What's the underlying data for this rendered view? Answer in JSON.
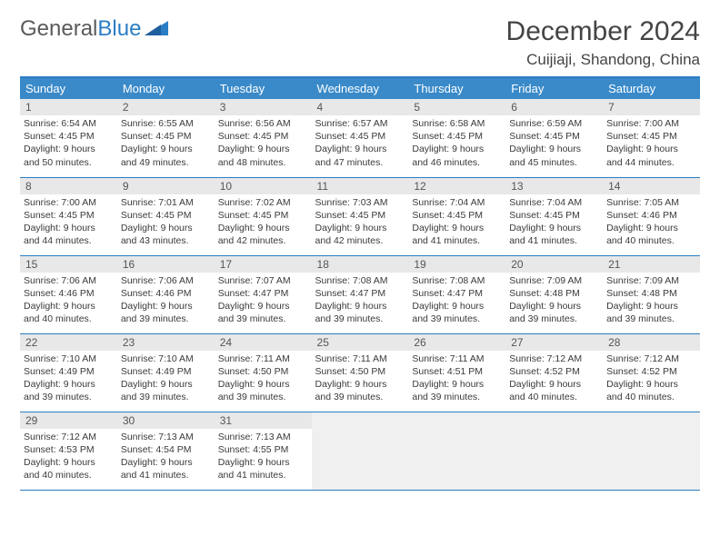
{
  "logo": {
    "word1": "General",
    "word2": "Blue"
  },
  "title": "December 2024",
  "location": "Cuijiaji, Shandong, China",
  "colors": {
    "header_bg": "#3a8ac9",
    "border": "#2b7dc4",
    "daynum_bg": "#e8e8e8",
    "text": "#3a3a3a",
    "page_bg": "#ffffff"
  },
  "weekdays": [
    "Sunday",
    "Monday",
    "Tuesday",
    "Wednesday",
    "Thursday",
    "Friday",
    "Saturday"
  ],
  "weeks": [
    [
      {
        "n": "1",
        "sr": "6:54 AM",
        "ss": "4:45 PM",
        "dl": "9 hours and 50 minutes."
      },
      {
        "n": "2",
        "sr": "6:55 AM",
        "ss": "4:45 PM",
        "dl": "9 hours and 49 minutes."
      },
      {
        "n": "3",
        "sr": "6:56 AM",
        "ss": "4:45 PM",
        "dl": "9 hours and 48 minutes."
      },
      {
        "n": "4",
        "sr": "6:57 AM",
        "ss": "4:45 PM",
        "dl": "9 hours and 47 minutes."
      },
      {
        "n": "5",
        "sr": "6:58 AM",
        "ss": "4:45 PM",
        "dl": "9 hours and 46 minutes."
      },
      {
        "n": "6",
        "sr": "6:59 AM",
        "ss": "4:45 PM",
        "dl": "9 hours and 45 minutes."
      },
      {
        "n": "7",
        "sr": "7:00 AM",
        "ss": "4:45 PM",
        "dl": "9 hours and 44 minutes."
      }
    ],
    [
      {
        "n": "8",
        "sr": "7:00 AM",
        "ss": "4:45 PM",
        "dl": "9 hours and 44 minutes."
      },
      {
        "n": "9",
        "sr": "7:01 AM",
        "ss": "4:45 PM",
        "dl": "9 hours and 43 minutes."
      },
      {
        "n": "10",
        "sr": "7:02 AM",
        "ss": "4:45 PM",
        "dl": "9 hours and 42 minutes."
      },
      {
        "n": "11",
        "sr": "7:03 AM",
        "ss": "4:45 PM",
        "dl": "9 hours and 42 minutes."
      },
      {
        "n": "12",
        "sr": "7:04 AM",
        "ss": "4:45 PM",
        "dl": "9 hours and 41 minutes."
      },
      {
        "n": "13",
        "sr": "7:04 AM",
        "ss": "4:45 PM",
        "dl": "9 hours and 41 minutes."
      },
      {
        "n": "14",
        "sr": "7:05 AM",
        "ss": "4:46 PM",
        "dl": "9 hours and 40 minutes."
      }
    ],
    [
      {
        "n": "15",
        "sr": "7:06 AM",
        "ss": "4:46 PM",
        "dl": "9 hours and 40 minutes."
      },
      {
        "n": "16",
        "sr": "7:06 AM",
        "ss": "4:46 PM",
        "dl": "9 hours and 39 minutes."
      },
      {
        "n": "17",
        "sr": "7:07 AM",
        "ss": "4:47 PM",
        "dl": "9 hours and 39 minutes."
      },
      {
        "n": "18",
        "sr": "7:08 AM",
        "ss": "4:47 PM",
        "dl": "9 hours and 39 minutes."
      },
      {
        "n": "19",
        "sr": "7:08 AM",
        "ss": "4:47 PM",
        "dl": "9 hours and 39 minutes."
      },
      {
        "n": "20",
        "sr": "7:09 AM",
        "ss": "4:48 PM",
        "dl": "9 hours and 39 minutes."
      },
      {
        "n": "21",
        "sr": "7:09 AM",
        "ss": "4:48 PM",
        "dl": "9 hours and 39 minutes."
      }
    ],
    [
      {
        "n": "22",
        "sr": "7:10 AM",
        "ss": "4:49 PM",
        "dl": "9 hours and 39 minutes."
      },
      {
        "n": "23",
        "sr": "7:10 AM",
        "ss": "4:49 PM",
        "dl": "9 hours and 39 minutes."
      },
      {
        "n": "24",
        "sr": "7:11 AM",
        "ss": "4:50 PM",
        "dl": "9 hours and 39 minutes."
      },
      {
        "n": "25",
        "sr": "7:11 AM",
        "ss": "4:50 PM",
        "dl": "9 hours and 39 minutes."
      },
      {
        "n": "26",
        "sr": "7:11 AM",
        "ss": "4:51 PM",
        "dl": "9 hours and 39 minutes."
      },
      {
        "n": "27",
        "sr": "7:12 AM",
        "ss": "4:52 PM",
        "dl": "9 hours and 40 minutes."
      },
      {
        "n": "28",
        "sr": "7:12 AM",
        "ss": "4:52 PM",
        "dl": "9 hours and 40 minutes."
      }
    ],
    [
      {
        "n": "29",
        "sr": "7:12 AM",
        "ss": "4:53 PM",
        "dl": "9 hours and 40 minutes."
      },
      {
        "n": "30",
        "sr": "7:13 AM",
        "ss": "4:54 PM",
        "dl": "9 hours and 41 minutes."
      },
      {
        "n": "31",
        "sr": "7:13 AM",
        "ss": "4:55 PM",
        "dl": "9 hours and 41 minutes."
      },
      null,
      null,
      null,
      null
    ]
  ],
  "labels": {
    "sunrise": "Sunrise:",
    "sunset": "Sunset:",
    "daylight": "Daylight:"
  }
}
